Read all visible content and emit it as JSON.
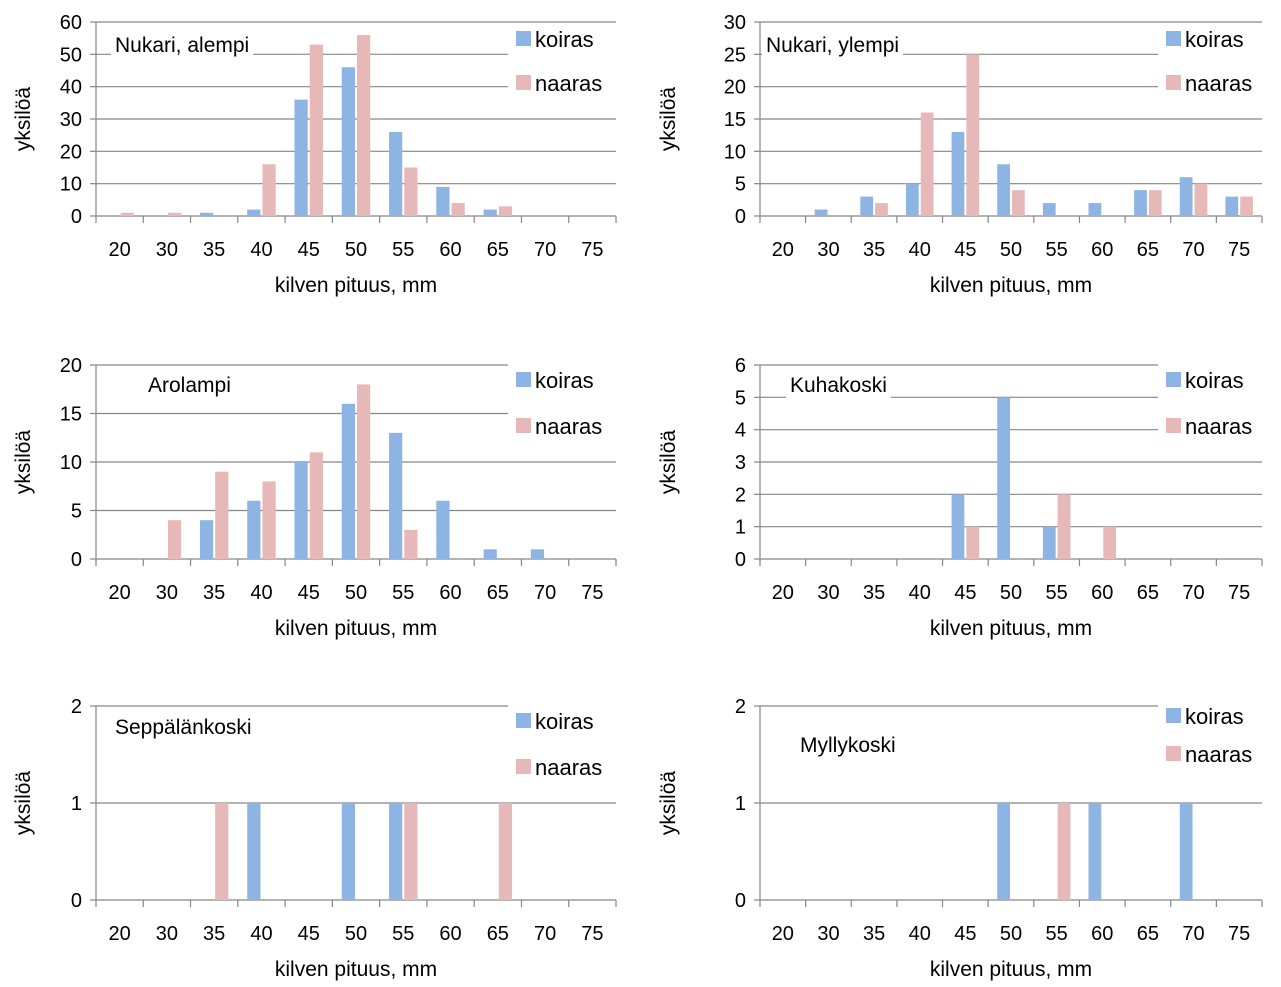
{
  "colors": {
    "koiras": "#8EB4E3",
    "naaras": "#E6B9B8",
    "grid": "#868686",
    "axis": "#868686"
  },
  "chart_data": [
    {
      "type": "bar",
      "title": "Nukari, alempi",
      "xlabel": "kilven pituus, mm",
      "ylabel": "yksilöä",
      "categories": [
        "20",
        "30",
        "35",
        "40",
        "45",
        "50",
        "55",
        "60",
        "65",
        "70",
        "75"
      ],
      "ylim": [
        0,
        60
      ],
      "yticks": [
        "0",
        "10",
        "20",
        "30",
        "40",
        "50",
        "60"
      ],
      "grid": true,
      "legend": "top-right",
      "series": [
        {
          "name": "koiras",
          "values": [
            0,
            0,
            1,
            2,
            36,
            46,
            26,
            9,
            2,
            0,
            0
          ]
        },
        {
          "name": "naaras",
          "values": [
            1,
            1,
            0,
            16,
            53,
            56,
            15,
            4,
            3,
            0,
            0
          ]
        }
      ]
    },
    {
      "type": "bar",
      "title": "Nukari, ylempi",
      "xlabel": "kilven pituus, mm",
      "ylabel": "yksilöä",
      "categories": [
        "20",
        "30",
        "35",
        "40",
        "45",
        "50",
        "55",
        "60",
        "65",
        "70",
        "75"
      ],
      "ylim": [
        0,
        30
      ],
      "yticks": [
        "0",
        "5",
        "10",
        "15",
        "20",
        "25",
        "30"
      ],
      "grid": true,
      "legend": "top-right",
      "series": [
        {
          "name": "koiras",
          "values": [
            0,
            1,
            3,
            5,
            13,
            8,
            2,
            2,
            4,
            6,
            3
          ]
        },
        {
          "name": "naaras",
          "values": [
            0,
            0,
            2,
            16,
            25,
            4,
            0,
            0,
            4,
            5,
            3
          ]
        }
      ]
    },
    {
      "type": "bar",
      "title": "Arolampi",
      "xlabel": "kilven pituus, mm",
      "ylabel": "yksilöä",
      "categories": [
        "20",
        "30",
        "35",
        "40",
        "45",
        "50",
        "55",
        "60",
        "65",
        "70",
        "75"
      ],
      "ylim": [
        0,
        20
      ],
      "yticks": [
        "0",
        "5",
        "10",
        "15",
        "20"
      ],
      "grid": true,
      "legend": "top-right",
      "series": [
        {
          "name": "koiras",
          "values": [
            0,
            0,
            4,
            6,
            10,
            16,
            13,
            6,
            1,
            1,
            0
          ]
        },
        {
          "name": "naaras",
          "values": [
            0,
            4,
            9,
            8,
            11,
            18,
            3,
            0,
            0,
            0,
            0
          ]
        }
      ]
    },
    {
      "type": "bar",
      "title": "Kuhakoski",
      "xlabel": "kilven pituus, mm",
      "ylabel": "yksilöä",
      "categories": [
        "20",
        "30",
        "35",
        "40",
        "45",
        "50",
        "55",
        "60",
        "65",
        "70",
        "75"
      ],
      "ylim": [
        0,
        6
      ],
      "yticks": [
        "0",
        "1",
        "2",
        "3",
        "4",
        "5",
        "6"
      ],
      "grid": true,
      "legend": "top-right",
      "series": [
        {
          "name": "koiras",
          "values": [
            0,
            0,
            0,
            0,
            2,
            5,
            1,
            0,
            0,
            0,
            0
          ]
        },
        {
          "name": "naaras",
          "values": [
            0,
            0,
            0,
            0,
            1,
            0,
            2,
            1,
            0,
            0,
            0
          ]
        }
      ]
    },
    {
      "type": "bar",
      "title": "Seppälänkoski",
      "xlabel": "kilven pituus, mm",
      "ylabel": "yksilöä",
      "categories": [
        "20",
        "30",
        "35",
        "40",
        "45",
        "50",
        "55",
        "60",
        "65",
        "70",
        "75"
      ],
      "ylim": [
        0,
        2
      ],
      "yticks": [
        "0",
        "1",
        "2"
      ],
      "grid": true,
      "legend": "top-right",
      "series": [
        {
          "name": "koiras",
          "values": [
            0,
            0,
            0,
            1,
            0,
            1,
            1,
            0,
            0,
            0,
            0
          ]
        },
        {
          "name": "naaras",
          "values": [
            0,
            0,
            1,
            0,
            0,
            0,
            1,
            0,
            1,
            0,
            0
          ]
        }
      ]
    },
    {
      "type": "bar",
      "title": "Myllykoski",
      "xlabel": "kilven pituus, mm",
      "ylabel": "yksilöä",
      "categories": [
        "20",
        "30",
        "35",
        "40",
        "45",
        "50",
        "55",
        "60",
        "65",
        "70",
        "75"
      ],
      "ylim": [
        0,
        2
      ],
      "yticks": [
        "0",
        "1",
        "2"
      ],
      "grid": true,
      "legend": "top-right",
      "series": [
        {
          "name": "koiras",
          "values": [
            0,
            0,
            0,
            0,
            0,
            1,
            0,
            1,
            0,
            1,
            0
          ]
        },
        {
          "name": "naaras",
          "values": [
            0,
            0,
            0,
            0,
            0,
            0,
            1,
            0,
            0,
            0,
            0
          ]
        }
      ]
    }
  ]
}
